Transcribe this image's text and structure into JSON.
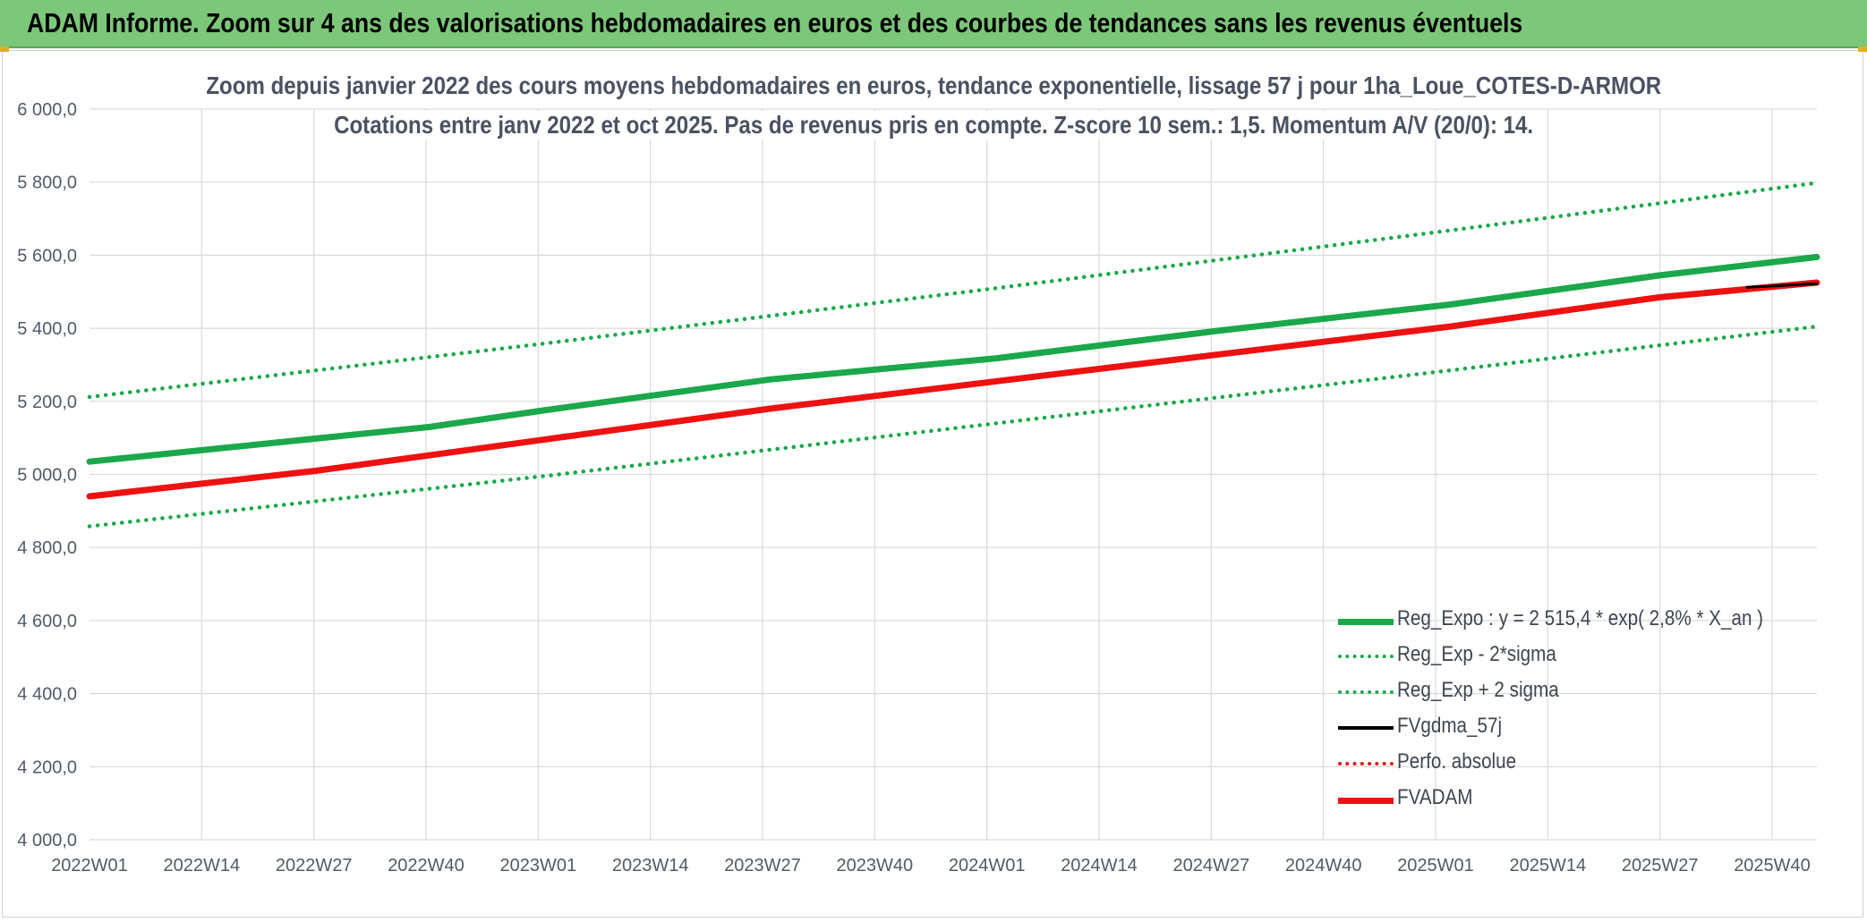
{
  "banner": {
    "title": "ADAM Informe. Zoom sur 4 ans des valorisations hebdomadaires en euros et des courbes de tendances sans les revenus éventuels"
  },
  "colors": {
    "banner_bg": "#7cc77a",
    "reg_expo": "#1aa84a",
    "fvadam": "#ee1111",
    "fvgdma": "#000000",
    "grid": "#d9d9d9"
  },
  "chart_data": {
    "type": "line",
    "title_line1": "Zoom depuis janvier 2022 des cours moyens hebdomadaires en euros, tendance exponentielle, lissage 57 j pour 1ha_Loue_COTES-D-ARMOR",
    "title_line2": "Cotations entre janv 2022 et oct 2025. Pas de revenus pris en compte. Z-score 10 sem.: 1,5. Momentum A/V (20/0): 14.",
    "xlabel": "",
    "ylabel": "",
    "ylim": [
      4000,
      6000
    ],
    "y_ticks": [
      "6 000,0",
      "5 800,0",
      "5 600,0",
      "5 400,0",
      "5 200,0",
      "5 000,0",
      "4 800,0",
      "4 600,0",
      "4 400,0",
      "4 200,0",
      "4 000,0"
    ],
    "y_tick_values": [
      6000,
      5800,
      5600,
      5400,
      5200,
      5000,
      4800,
      4600,
      4400,
      4200,
      4000
    ],
    "x_ticks": [
      "2022W01",
      "2022W14",
      "2022W27",
      "2022W40",
      "2023W01",
      "2023W14",
      "2023W27",
      "2023W40",
      "2024W01",
      "2024W14",
      "2024W27",
      "2024W40",
      "2025W01",
      "2025W14",
      "2025W27",
      "2025W40"
    ],
    "x_range_weeks": [
      0,
      198
    ],
    "legend_position": "bottom-right",
    "series": [
      {
        "name": "Reg_Expo : y = 2 515,4 * exp( 2,8% *  X_an )",
        "style": "solid-thick",
        "color": "#1aa84a",
        "x": [
          0,
          39,
          52,
          78,
          104,
          130,
          156,
          180,
          198
        ],
        "values": [
          5035,
          5130,
          5175,
          5260,
          5318,
          5395,
          5465,
          5545,
          5595
        ]
      },
      {
        "name": "Reg_Exp - 2*sigma",
        "style": "dotted",
        "color": "#1aa84a",
        "x": [
          0,
          52,
          104,
          156,
          198
        ],
        "values": [
          4858,
          4995,
          5140,
          5285,
          5405
        ]
      },
      {
        "name": "Reg_Exp + 2 sigma",
        "style": "dotted",
        "color": "#1aa84a",
        "x": [
          0,
          52,
          104,
          156,
          198
        ],
        "values": [
          5212,
          5358,
          5510,
          5668,
          5798
        ]
      },
      {
        "name": "FVgdma_57j",
        "style": "solid",
        "color": "#000000",
        "x": [
          190,
          198
        ],
        "values": [
          5512,
          5522
        ]
      },
      {
        "name": "Perfo. absolue",
        "style": "dotted",
        "color": "#ee1111",
        "x": [],
        "values": []
      },
      {
        "name": "FVADAM",
        "style": "solid-thick",
        "color": "#ee1111",
        "x": [
          0,
          26,
          52,
          78,
          104,
          130,
          156,
          180,
          198
        ],
        "values": [
          4940,
          5010,
          5095,
          5180,
          5255,
          5330,
          5405,
          5485,
          5525
        ]
      }
    ]
  }
}
